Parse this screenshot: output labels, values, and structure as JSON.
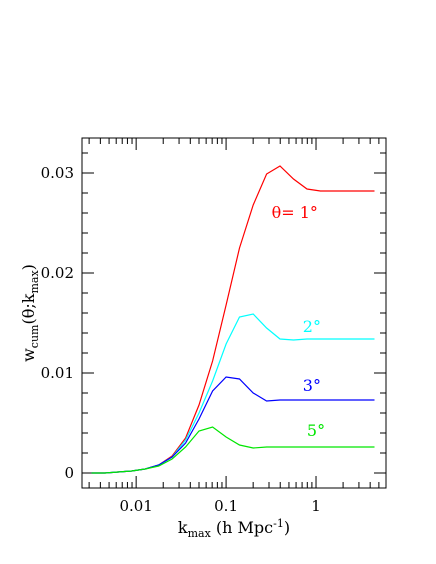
{
  "chart_data": {
    "type": "line",
    "xlabel": {
      "main": "k",
      "sub": "max",
      "rest": " (h Mpc",
      "sup": "-1",
      "close": ")"
    },
    "ylabel": {
      "main": "w",
      "sub": "cum",
      "rest": "(θ;k",
      "sub2": "max",
      "close": ")"
    },
    "xscale": "log",
    "xlim": [
      0.0025,
      6.0
    ],
    "ylim": [
      -0.0015,
      0.0335
    ],
    "xticks": [
      {
        "value": 0.01,
        "label": "0.01"
      },
      {
        "value": 0.1,
        "label": "0.1"
      },
      {
        "value": 1,
        "label": "1"
      }
    ],
    "yticks": [
      {
        "value": 0,
        "label": "0"
      },
      {
        "value": 0.01,
        "label": "0.01"
      },
      {
        "value": 0.02,
        "label": "0.02"
      },
      {
        "value": 0.03,
        "label": "0.03"
      }
    ],
    "grid": false,
    "legend": "inline labels",
    "series": [
      {
        "name": "θ= 1°",
        "color": "#ff0000",
        "label_at": [
          0.58,
          0.0255
        ],
        "x": [
          0.0032,
          0.0045,
          0.0063,
          0.0089,
          0.0126,
          0.0178,
          0.0251,
          0.0355,
          0.05,
          0.0708,
          0.1,
          0.141,
          0.2,
          0.282,
          0.398,
          0.562,
          0.794,
          1.12,
          1.58,
          2.24,
          3.16,
          4.47
        ],
        "y": [
          0.0,
          0.0,
          0.0001,
          0.0002,
          0.0004,
          0.0008,
          0.0017,
          0.0035,
          0.0068,
          0.0112,
          0.0168,
          0.0225,
          0.0268,
          0.0299,
          0.0307,
          0.0294,
          0.0284,
          0.0282,
          0.0282,
          0.0282,
          0.0282,
          0.0282
        ]
      },
      {
        "name": "2°",
        "color": "#00ffff",
        "label_at": [
          0.9,
          0.0141
        ],
        "x": [
          0.0032,
          0.0045,
          0.0063,
          0.0089,
          0.0126,
          0.0178,
          0.0251,
          0.0355,
          0.05,
          0.0708,
          0.1,
          0.141,
          0.2,
          0.282,
          0.398,
          0.562,
          0.794,
          1.12,
          1.58,
          2.24,
          3.16,
          4.47
        ],
        "y": [
          0.0,
          0.0,
          0.0001,
          0.0002,
          0.0004,
          0.0008,
          0.0016,
          0.0033,
          0.006,
          0.0092,
          0.0129,
          0.0156,
          0.0159,
          0.0145,
          0.0134,
          0.0133,
          0.0134,
          0.0134,
          0.0134,
          0.0134,
          0.0134,
          0.0134
        ]
      },
      {
        "name": "3°",
        "color": "#0000ff",
        "label_at": [
          0.9,
          0.0082
        ],
        "x": [
          0.0032,
          0.0045,
          0.0063,
          0.0089,
          0.0126,
          0.0178,
          0.0251,
          0.0355,
          0.05,
          0.0708,
          0.1,
          0.141,
          0.2,
          0.282,
          0.398,
          0.562,
          0.794,
          1.12,
          1.58,
          2.24,
          3.16,
          4.47
        ],
        "y": [
          0.0,
          0.0,
          0.0001,
          0.0002,
          0.0004,
          0.0008,
          0.0016,
          0.003,
          0.0054,
          0.0082,
          0.0096,
          0.0094,
          0.008,
          0.0072,
          0.0073,
          0.0073,
          0.0073,
          0.0073,
          0.0073,
          0.0073,
          0.0073,
          0.0073
        ]
      },
      {
        "name": "5°",
        "color": "#00e600",
        "label_at": [
          1.0,
          0.0037
        ],
        "x": [
          0.0032,
          0.0045,
          0.0063,
          0.0089,
          0.0126,
          0.0178,
          0.0251,
          0.0355,
          0.05,
          0.0708,
          0.1,
          0.141,
          0.2,
          0.282,
          0.398,
          0.562,
          0.794,
          1.12,
          1.58,
          2.24,
          3.16,
          4.47
        ],
        "y": [
          0.0,
          0.0,
          0.0001,
          0.0002,
          0.0004,
          0.0007,
          0.0014,
          0.0026,
          0.0042,
          0.0046,
          0.0036,
          0.0028,
          0.0025,
          0.0026,
          0.0026,
          0.0026,
          0.0026,
          0.0026,
          0.0026,
          0.0026,
          0.0026,
          0.0026
        ]
      }
    ]
  }
}
